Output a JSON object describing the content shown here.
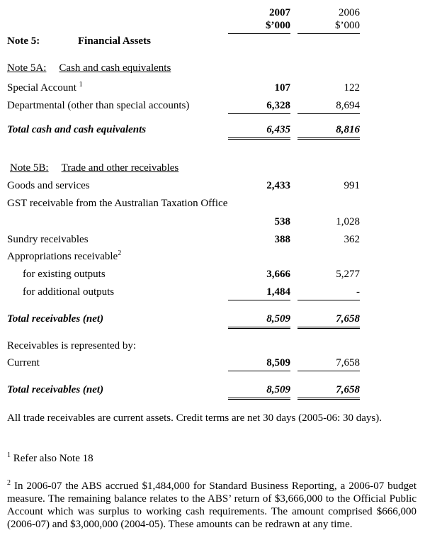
{
  "columns": [
    {
      "year": "2007",
      "unit": "$’000"
    },
    {
      "year": "2006",
      "unit": "$’000"
    }
  ],
  "note": {
    "number": "Note 5:",
    "title": "Financial Assets"
  },
  "note_5a": {
    "number": "Note 5A:",
    "title": "Cash and cash equivalents",
    "rows": [
      {
        "label": "Special Account",
        "footnote": "1",
        "values": [
          "107",
          "122"
        ]
      },
      {
        "label": "Departmental (other than special accounts)",
        "values": [
          "6,328",
          "8,694"
        ]
      },
      {
        "label": "Total cash and cash equivalents",
        "values": [
          "6,435",
          "8,816"
        ]
      }
    ]
  },
  "note_5b": {
    "number": "Note 5B:",
    "title": "Trade and other receivables",
    "rows": [
      {
        "label": "Goods and services",
        "values": [
          "2,433",
          "991"
        ]
      },
      {
        "label": "GST receivable from the Australian Taxation Office",
        "values": [
          "538",
          "1,028"
        ]
      },
      {
        "label": "Sundry receivables",
        "values": [
          "388",
          "362"
        ]
      },
      {
        "label": "Appropriations receivable",
        "footnote": "2"
      },
      {
        "label": "for existing outputs",
        "values": [
          "3,666",
          "5,277"
        ]
      },
      {
        "label": "for additional outputs",
        "values": [
          "1,484",
          "-"
        ]
      },
      {
        "label": "Total receivables (net)",
        "values": [
          "8,509",
          "7,658"
        ]
      },
      {
        "label": "Receivables is represented by:"
      },
      {
        "label": "Current",
        "values": [
          "8,509",
          "7,658"
        ]
      },
      {
        "label": "Total receivables (net)",
        "values": [
          "8,509",
          "7,658"
        ]
      }
    ]
  },
  "remarks": "All trade receivables are current assets. Credit terms are net 30 days (2005-06: 30 days).",
  "footnotes": [
    {
      "marker": "1",
      "text": "Refer also Note 18"
    },
    {
      "marker": "2",
      "text": "In 2006-07 the ABS accrued $1,484,000 for Standard Business Reporting, a 2006-07 budget measure.  The remaining balance relates to the ABS’ return of $3,666,000 to the Official Public Account which was surplus to working cash requirements. The amount comprised $666,000 (2006-07) and $3,000,000 (2004-05). These amounts can be redrawn at any time."
    }
  ]
}
